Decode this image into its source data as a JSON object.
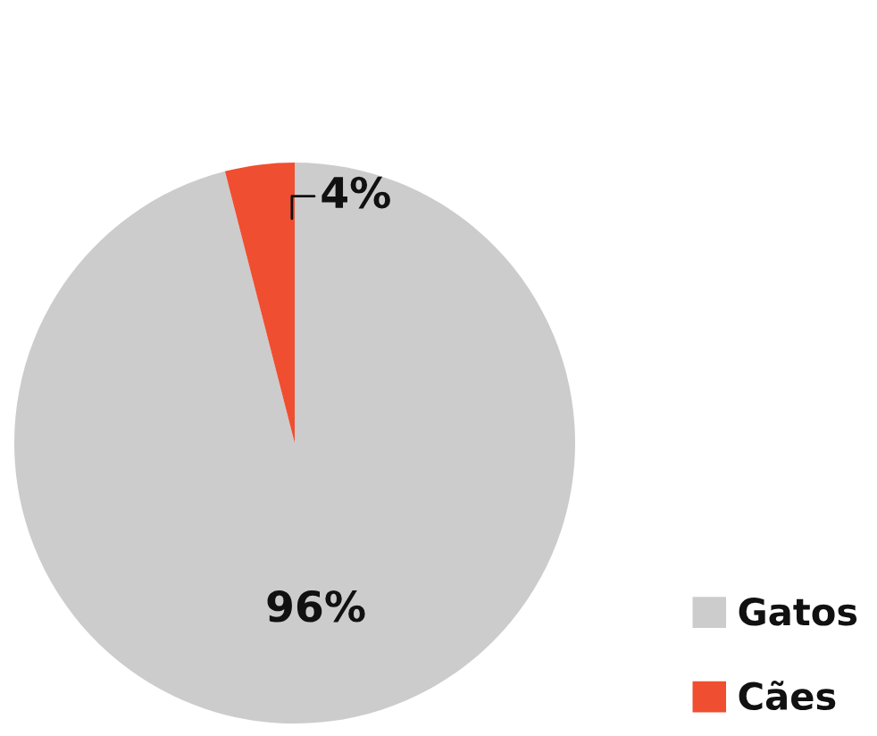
{
  "chart_data": {
    "type": "pie",
    "categories": [
      "Gatos",
      "Cães"
    ],
    "values": [
      96,
      4
    ],
    "colors": [
      "#cccccc",
      "#f04e30"
    ],
    "value_labels": [
      "96%",
      "4%"
    ],
    "legend": "bottom right"
  }
}
